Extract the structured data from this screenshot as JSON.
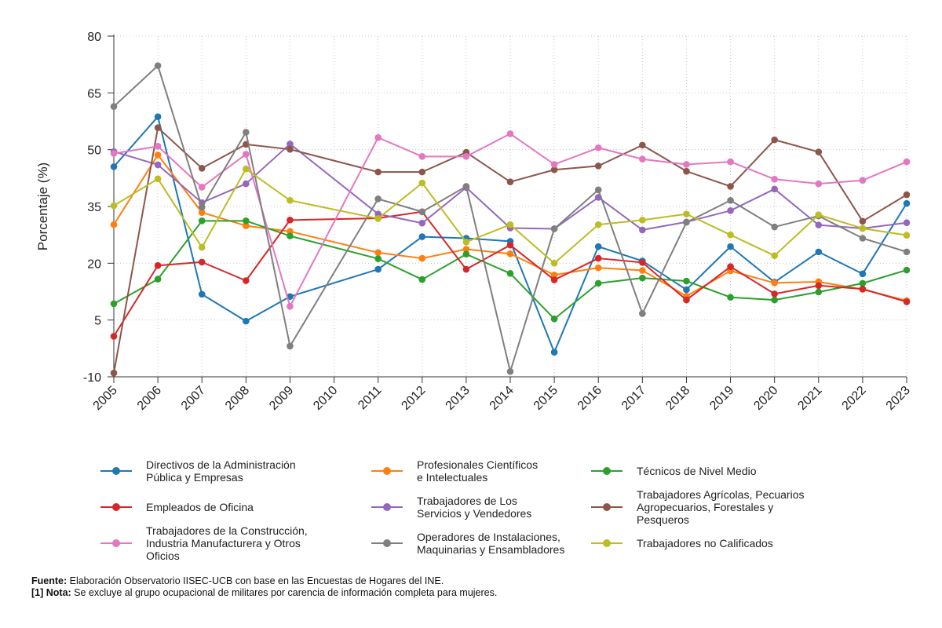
{
  "chart_data": {
    "type": "line",
    "title": "",
    "xlabel": "",
    "ylabel": "Porcentaje (%)",
    "ylim": [
      -10,
      80
    ],
    "yticks": [
      -10,
      5,
      20,
      35,
      50,
      65,
      80
    ],
    "grid": true,
    "categories": [
      "2005",
      "2006",
      "2007",
      "2008",
      "2009",
      "2010",
      "2011",
      "2012",
      "2013",
      "2014",
      "2015",
      "2016",
      "2017",
      "2018",
      "2019",
      "2020",
      "2021",
      "2022",
      "2023"
    ],
    "series": [
      {
        "name": "Directivos de la Administración Pública y Empresas",
        "legend_lines": [
          "Directivos de la Administración",
          "Pública y Empresas"
        ],
        "color": "#1f77b4",
        "values": [
          45.5,
          58.7,
          11.8,
          4.7,
          11.2,
          null,
          18.4,
          27.0,
          26.6,
          25.8,
          -3.5,
          24.4,
          20.6,
          13.0,
          24.4,
          15.0,
          23.0,
          17.2,
          35.8
        ]
      },
      {
        "name": "Profesionales Científicos e Intelectuales",
        "legend_lines": [
          "Profesionales Científicos",
          "e Intelectuales"
        ],
        "color": "#ff7f0e",
        "values": [
          30.2,
          48.6,
          33.4,
          29.9,
          28.4,
          null,
          22.8,
          21.3,
          23.7,
          22.5,
          16.9,
          18.8,
          18.1,
          11.3,
          18.0,
          14.8,
          15.1,
          13.1,
          10.1
        ]
      },
      {
        "name": "Técnicos de Nivel Medio",
        "legend_lines": [
          "Técnicos de Nivel Medio"
        ],
        "color": "#2ca02c",
        "values": [
          9.3,
          15.8,
          31.2,
          31.2,
          27.2,
          null,
          21.2,
          15.7,
          22.4,
          17.3,
          5.3,
          14.7,
          16.1,
          15.3,
          11.0,
          10.3,
          12.4,
          14.7,
          18.2
        ]
      },
      {
        "name": "Empleados de Oficina",
        "legend_lines": [
          "Empleados de Oficina"
        ],
        "color": "#d62728",
        "values": [
          0.7,
          19.4,
          20.3,
          15.4,
          31.4,
          null,
          31.9,
          33.6,
          18.4,
          24.8,
          15.6,
          21.3,
          20.2,
          10.3,
          19.1,
          11.9,
          14.1,
          13.2,
          9.8
        ]
      },
      {
        "name": "Trabajadores de Los Servicios y Vendedores",
        "legend_lines": [
          "Trabajadores de Los",
          "Servicios y Vendedores"
        ],
        "color": "#9467bd",
        "values": [
          49.5,
          46.0,
          36.0,
          41.0,
          51.5,
          null,
          33.0,
          30.6,
          40.0,
          29.3,
          29.1,
          37.4,
          28.8,
          30.9,
          33.9,
          39.6,
          30.1,
          29.2,
          30.7
        ]
      },
      {
        "name": "Trabajadores Agrícolas, Pecuarios Agropecuarios, Forestales y Pesqueros",
        "legend_lines": [
          "Trabajadores Agrícolas, Pecuarios",
          "Agropecuarios, Forestales y Pesqueros"
        ],
        "color": "#8c564b",
        "values": [
          -9.0,
          55.8,
          45.1,
          51.4,
          50.1,
          null,
          44.1,
          44.1,
          49.3,
          41.5,
          44.7,
          45.7,
          51.2,
          44.3,
          40.3,
          52.6,
          49.4,
          31.1,
          38.1
        ]
      },
      {
        "name": "Trabajadores de la Construcción, Industria Manufacturera y Otros Oficios",
        "legend_lines": [
          "Trabajadores de la Construcción,",
          "Industria Manufacturera y Otros Oficios"
        ],
        "color": "#e377c2",
        "values": [
          49.0,
          50.9,
          40.1,
          48.8,
          8.6,
          null,
          53.2,
          48.2,
          48.2,
          54.2,
          46.1,
          50.5,
          47.5,
          46.1,
          46.8,
          42.2,
          41.0,
          41.9,
          46.8
        ]
      },
      {
        "name": "Operadores de Instalaciones, Maquinarias y Ensambladores",
        "legend_lines": [
          "Operadores de Instalaciones,",
          "Maquinarias y Ensambladores"
        ],
        "color": "#7f7f7f",
        "values": [
          61.4,
          72.2,
          34.8,
          54.6,
          -1.9,
          null,
          37.0,
          33.6,
          40.3,
          -8.6,
          29.1,
          39.4,
          6.7,
          30.8,
          36.6,
          29.6,
          32.5,
          26.6,
          23.0
        ]
      },
      {
        "name": "Trabajadores no Calificados",
        "legend_lines": [
          "Trabajadores no Calificados"
        ],
        "color": "#bcbd22",
        "values": [
          35.2,
          42.3,
          24.2,
          44.9,
          36.6,
          null,
          31.8,
          41.2,
          25.6,
          30.2,
          20.0,
          30.2,
          31.4,
          33.0,
          27.5,
          22.0,
          32.8,
          29.2,
          27.4
        ]
      }
    ]
  },
  "footer": {
    "source_label": "Fuente:",
    "source_text": " Elaboración Observatorio IISEC-UCB con base en las Encuestas de Hogares del INE.",
    "note_label": "[1] Nota:",
    "note_text": " Se excluye al grupo ocupacional de militares por carencia de información completa para mujeres."
  }
}
